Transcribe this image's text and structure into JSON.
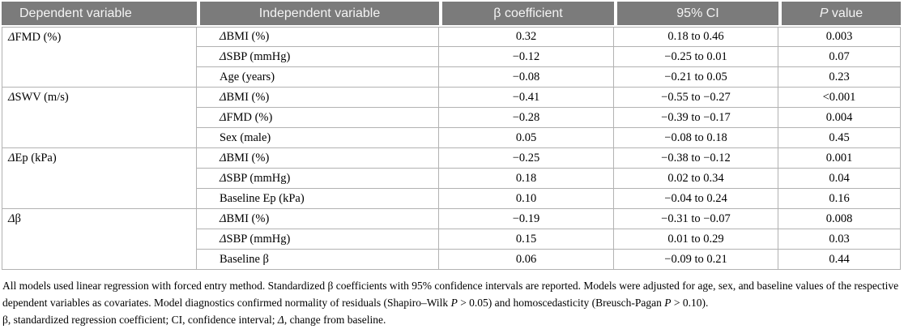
{
  "table": {
    "columns": {
      "dependent": "Dependent variable",
      "independent": "Independent variable",
      "beta": "β coefficient",
      "ci": "95% CI",
      "p": "P value"
    },
    "groups": [
      {
        "dependent": "ΔFMD (%)",
        "rows": [
          {
            "independent": "ΔBMI (%)",
            "beta": "0.32",
            "ci": "0.18 to 0.46",
            "p": "0.003"
          },
          {
            "independent": "ΔSBP (mmHg)",
            "beta": "−0.12",
            "ci": "−0.25 to 0.01",
            "p": "0.07"
          },
          {
            "independent": "Age (years)",
            "beta": "−0.08",
            "ci": "−0.21 to 0.05",
            "p": "0.23"
          }
        ]
      },
      {
        "dependent": "ΔSWV (m/s)",
        "rows": [
          {
            "independent": "ΔBMI (%)",
            "beta": "−0.41",
            "ci": "−0.55 to −0.27",
            "p": "<0.001"
          },
          {
            "independent": "ΔFMD (%)",
            "beta": "−0.28",
            "ci": "−0.39 to −0.17",
            "p": "0.004"
          },
          {
            "independent": "Sex (male)",
            "beta": "0.05",
            "ci": "−0.08 to 0.18",
            "p": "0.45"
          }
        ]
      },
      {
        "dependent": "ΔEp (kPa)",
        "rows": [
          {
            "independent": "ΔBMI (%)",
            "beta": "−0.25",
            "ci": "−0.38 to −0.12",
            "p": "0.001"
          },
          {
            "independent": "ΔSBP (mmHg)",
            "beta": "0.18",
            "ci": "0.02 to 0.34",
            "p": "0.04"
          },
          {
            "independent": "Baseline Ep (kPa)",
            "beta": "0.10",
            "ci": "−0.04 to 0.24",
            "p": "0.16"
          }
        ]
      },
      {
        "dependent": "Δβ",
        "rows": [
          {
            "independent": "ΔBMI (%)",
            "beta": "−0.19",
            "ci": "−0.31 to −0.07",
            "p": "0.008"
          },
          {
            "independent": "ΔSBP (mmHg)",
            "beta": "0.15",
            "ci": "0.01 to 0.29",
            "p": "0.03"
          },
          {
            "independent": "Baseline β",
            "beta": "0.06",
            "ci": "−0.09 to 0.21",
            "p": "0.44"
          }
        ]
      }
    ]
  },
  "footnotes": {
    "methods": "All models used linear regression with forced entry method. Standardized β coefficients with 95% confidence intervals are reported. Models were adjusted for age, sex, and baseline values of the respective dependent variables as covariates. Model diagnostics confirmed normality of residuals (Shapiro–Wilk P > 0.05) and homoscedasticity (Breusch-Pagan P > 0.10).",
    "abbreviations": "β, standardized regression coefficient; CI, confidence interval; Δ, change from baseline."
  }
}
